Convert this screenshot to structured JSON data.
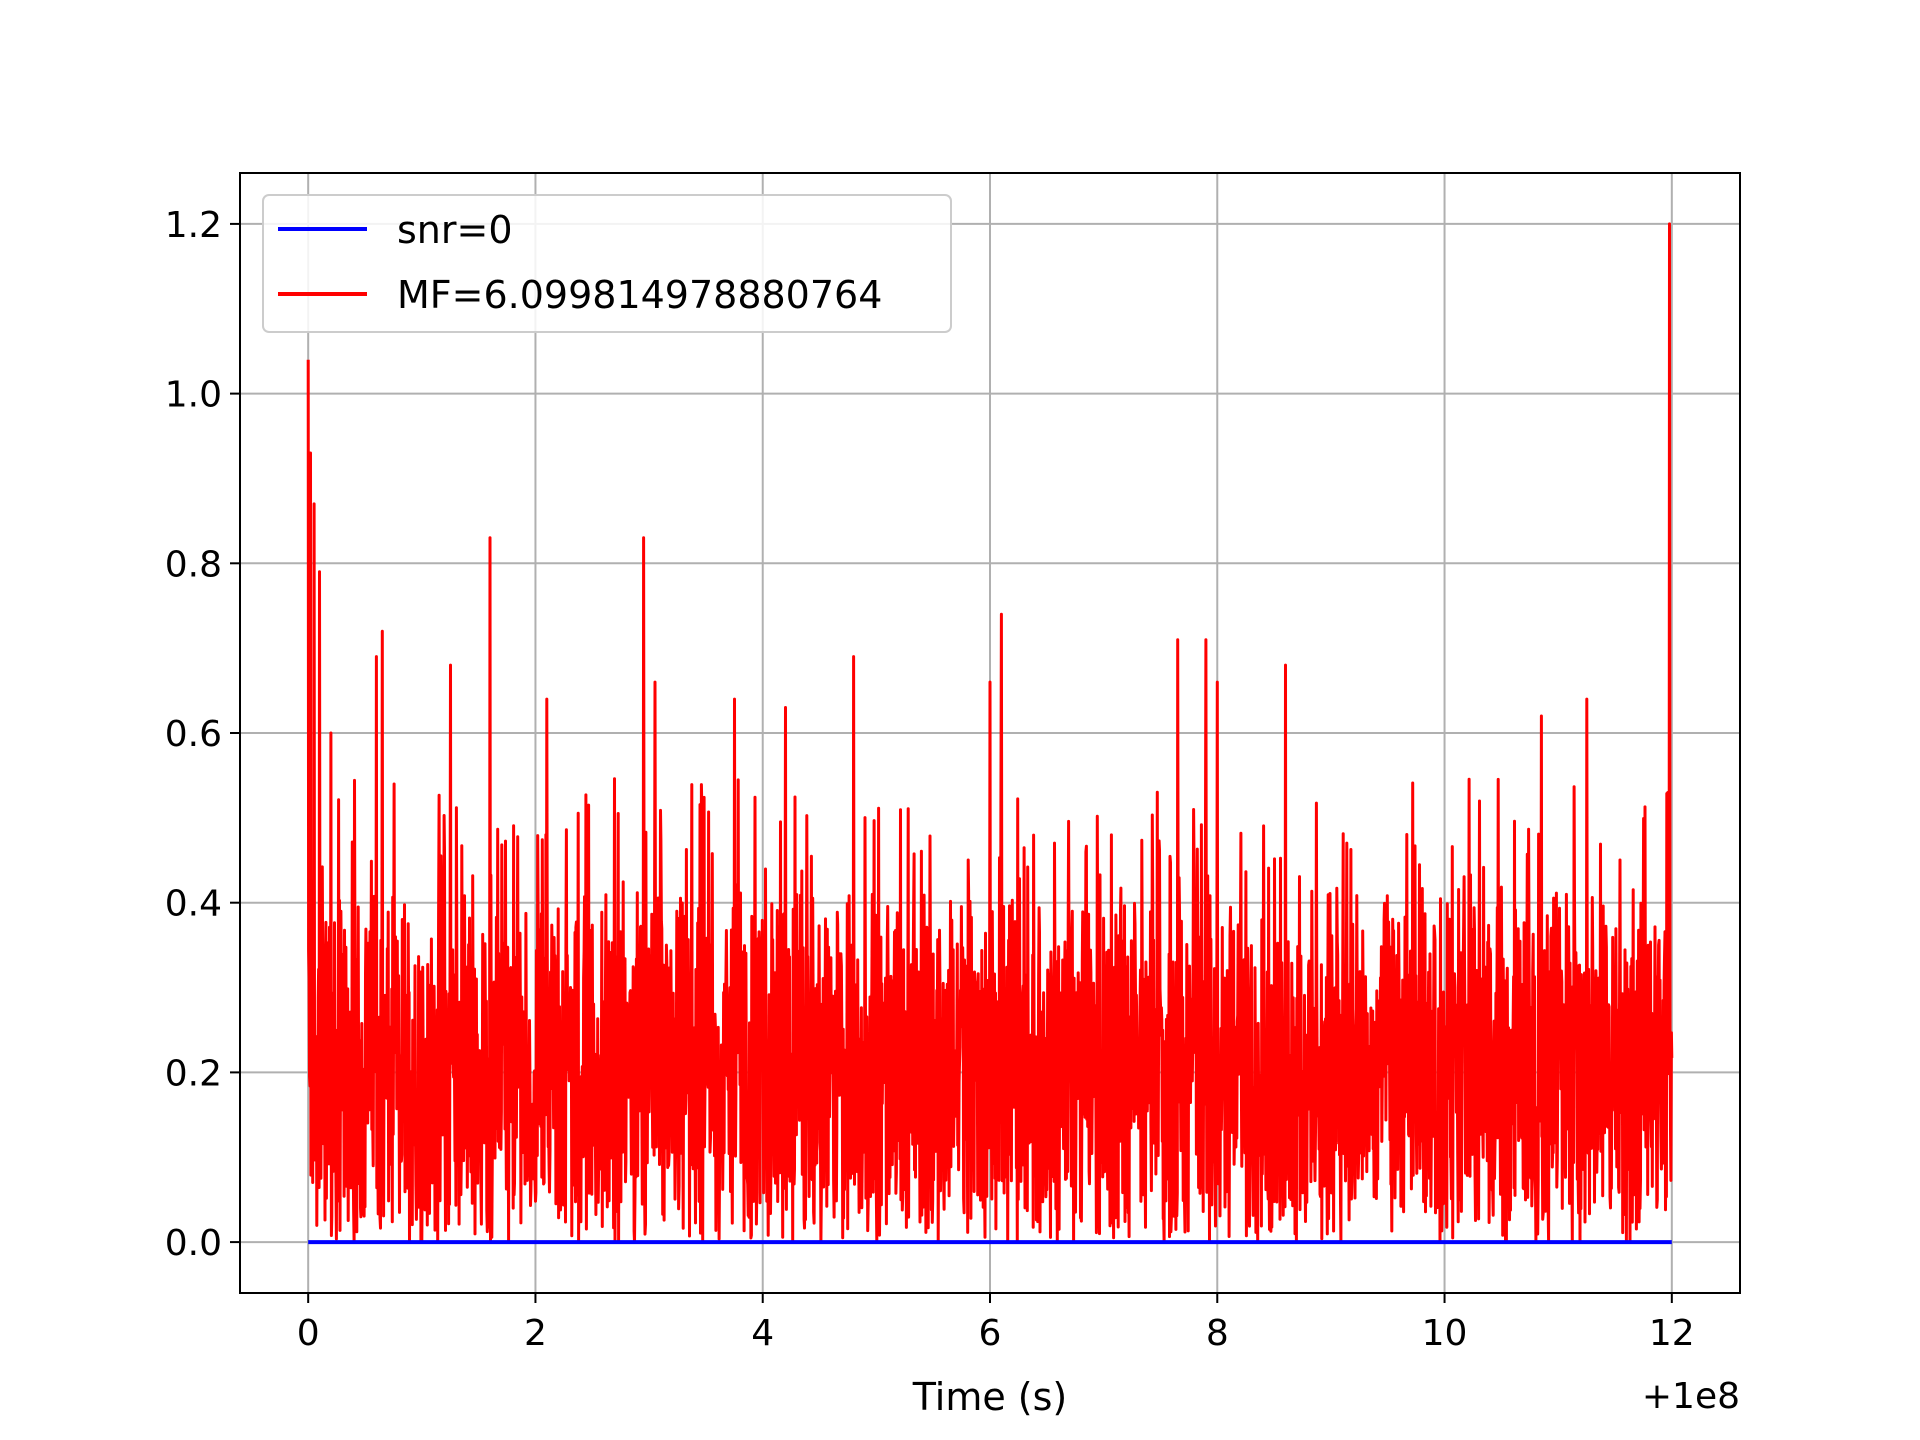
{
  "chart_data": {
    "type": "line",
    "title": "",
    "xlabel": "Time (s)",
    "ylabel": "",
    "x_offset_label": "+1e8",
    "xlim": [
      -0.6,
      12.6
    ],
    "ylim": [
      -0.06,
      1.26
    ],
    "x_ticks": [
      0,
      2,
      4,
      6,
      8,
      10,
      12
    ],
    "x_tick_labels": [
      "0",
      "2",
      "4",
      "6",
      "8",
      "10",
      "12"
    ],
    "y_ticks": [
      0.0,
      0.2,
      0.4,
      0.6,
      0.8,
      1.0,
      1.2
    ],
    "y_tick_labels": [
      "0.0",
      "0.2",
      "0.4",
      "0.6",
      "0.8",
      "1.0",
      "1.2"
    ],
    "grid": true,
    "legend_position": "top-left",
    "series": [
      {
        "name": "snr=0",
        "color": "#0000ff",
        "style": "flat",
        "x": [
          0,
          12
        ],
        "values": [
          0,
          0
        ]
      },
      {
        "name": "MF=6.099814978880764",
        "color": "#ff0000",
        "style": "noise",
        "x_range": [
          0,
          12
        ],
        "approx_mean": 0.2,
        "approx_typical_max": 0.5,
        "approx_min": 0.0,
        "peaks": [
          {
            "x": 0.0,
            "y": 1.04
          },
          {
            "x": 0.02,
            "y": 0.93
          },
          {
            "x": 0.05,
            "y": 0.87
          },
          {
            "x": 0.1,
            "y": 0.79
          },
          {
            "x": 0.2,
            "y": 0.6
          },
          {
            "x": 0.6,
            "y": 0.69
          },
          {
            "x": 0.65,
            "y": 0.72
          },
          {
            "x": 1.25,
            "y": 0.68
          },
          {
            "x": 1.6,
            "y": 0.83
          },
          {
            "x": 2.1,
            "y": 0.64
          },
          {
            "x": 2.95,
            "y": 0.83
          },
          {
            "x": 3.05,
            "y": 0.66
          },
          {
            "x": 3.75,
            "y": 0.64
          },
          {
            "x": 4.2,
            "y": 0.63
          },
          {
            "x": 4.8,
            "y": 0.69
          },
          {
            "x": 6.1,
            "y": 0.74
          },
          {
            "x": 6.0,
            "y": 0.66
          },
          {
            "x": 7.65,
            "y": 0.71
          },
          {
            "x": 7.9,
            "y": 0.71
          },
          {
            "x": 8.0,
            "y": 0.66
          },
          {
            "x": 8.6,
            "y": 0.68
          },
          {
            "x": 10.85,
            "y": 0.62
          },
          {
            "x": 11.25,
            "y": 0.64
          },
          {
            "x": 11.98,
            "y": 1.2
          }
        ]
      }
    ]
  }
}
